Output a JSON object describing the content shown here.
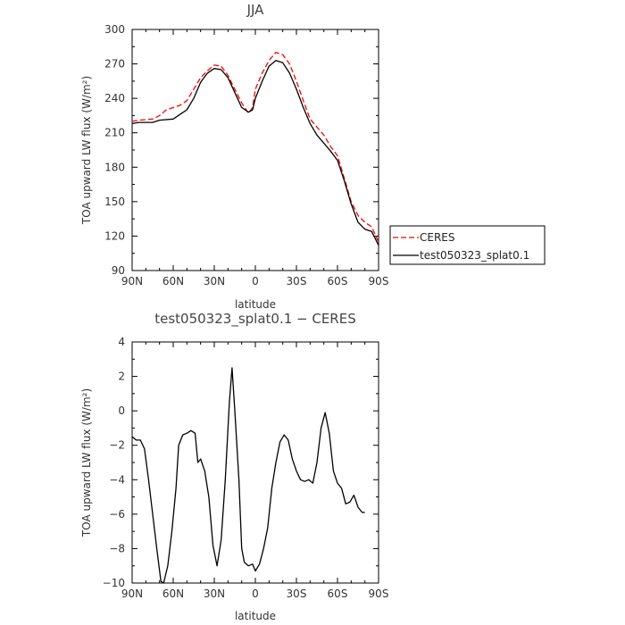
{
  "chart_data": [
    {
      "type": "line",
      "title": "JJA",
      "xlabel": "latitude",
      "ylabel": "TOA upward LW flux (W/m²)",
      "x_ticks": [
        90,
        60,
        30,
        0,
        -30,
        -60,
        -90
      ],
      "x_tick_labels": [
        "90N",
        "60N",
        "30N",
        "0",
        "30S",
        "60S",
        "90S"
      ],
      "xlim": [
        90,
        -90
      ],
      "ylim": [
        90,
        300
      ],
      "y_ticks": [
        90,
        120,
        150,
        180,
        210,
        240,
        270,
        300
      ],
      "y_tick_labels": [
        "90",
        "120",
        "150",
        "180",
        "210",
        "240",
        "270",
        "300"
      ],
      "legend": {
        "placement": "outside-right"
      },
      "series": [
        {
          "name": "CERES",
          "color": "#ff0000",
          "dash": "dashed",
          "points": [
            [
              90,
              220
            ],
            [
              85,
              221
            ],
            [
              75,
              222
            ],
            [
              70,
              225
            ],
            [
              65,
              230
            ],
            [
              55,
              234
            ],
            [
              50,
              238
            ],
            [
              45,
              248
            ],
            [
              40,
              258
            ],
            [
              35,
              264
            ],
            [
              30,
              269
            ],
            [
              25,
              268
            ],
            [
              20,
              260
            ],
            [
              15,
              248
            ],
            [
              10,
              236
            ],
            [
              5,
              227
            ],
            [
              2,
              232
            ],
            [
              0,
              248
            ],
            [
              -5,
              262
            ],
            [
              -10,
              273
            ],
            [
              -15,
              280
            ],
            [
              -20,
              278
            ],
            [
              -25,
              270
            ],
            [
              -30,
              255
            ],
            [
              -35,
              238
            ],
            [
              -40,
              222
            ],
            [
              -50,
              208
            ],
            [
              -55,
              198
            ],
            [
              -60,
              190
            ],
            [
              -65,
              170
            ],
            [
              -70,
              150
            ],
            [
              -75,
              138
            ],
            [
              -80,
              132
            ],
            [
              -85,
              128
            ],
            [
              -88,
              120
            ],
            [
              -90,
              115
            ]
          ]
        },
        {
          "name": "test050323_splat0.1",
          "color": "#000000",
          "dash": "solid",
          "points": [
            [
              90,
              218
            ],
            [
              85,
              219
            ],
            [
              75,
              219
            ],
            [
              70,
              221
            ],
            [
              60,
              222
            ],
            [
              55,
              226
            ],
            [
              50,
              230
            ],
            [
              45,
              240
            ],
            [
              40,
              254
            ],
            [
              35,
              262
            ],
            [
              30,
              266
            ],
            [
              25,
              265
            ],
            [
              20,
              258
            ],
            [
              15,
              245
            ],
            [
              10,
              232
            ],
            [
              5,
              228
            ],
            [
              2,
              230
            ],
            [
              0,
              240
            ],
            [
              -5,
              255
            ],
            [
              -10,
              268
            ],
            [
              -15,
              273
            ],
            [
              -20,
              271
            ],
            [
              -25,
              262
            ],
            [
              -30,
              248
            ],
            [
              -35,
              232
            ],
            [
              -40,
              218
            ],
            [
              -45,
              208
            ],
            [
              -50,
              201
            ],
            [
              -55,
              194
            ],
            [
              -60,
              186
            ],
            [
              -65,
              168
            ],
            [
              -70,
              148
            ],
            [
              -75,
              132
            ],
            [
              -80,
              126
            ],
            [
              -85,
              124
            ],
            [
              -90,
              112
            ]
          ]
        }
      ]
    },
    {
      "type": "line",
      "title": "test050323_splat0.1 − CERES",
      "xlabel": "latitude",
      "ylabel": "TOA upward LW flux (W/m²)",
      "x_ticks": [
        90,
        60,
        30,
        0,
        -30,
        -60,
        -90
      ],
      "x_tick_labels": [
        "90N",
        "60N",
        "30N",
        "0",
        "30S",
        "60S",
        "90S"
      ],
      "xlim": [
        90,
        -90
      ],
      "ylim": [
        -10,
        4
      ],
      "y_ticks": [
        -10,
        -8,
        -6,
        -4,
        -2,
        0,
        2,
        4
      ],
      "y_tick_labels": [
        "−10",
        "−8",
        "−6",
        "−4",
        "−2",
        "0",
        "2",
        "4"
      ],
      "series": [
        {
          "name": "",
          "color": "#000000",
          "dash": "solid",
          "points": [
            [
              90,
              -1.5
            ],
            [
              87,
              -1.7
            ],
            [
              84,
              -1.7
            ],
            [
              81,
              -2.2
            ],
            [
              78,
              -4.0
            ],
            [
              75,
              -6.0
            ],
            [
              72,
              -8.0
            ],
            [
              69,
              -9.9
            ],
            [
              67,
              -10.0
            ],
            [
              64,
              -9.0
            ],
            [
              61,
              -7.0
            ],
            [
              58,
              -4.5
            ],
            [
              56,
              -2.0
            ],
            [
              53,
              -1.4
            ],
            [
              50,
              -1.3
            ],
            [
              47,
              -1.15
            ],
            [
              44,
              -1.3
            ],
            [
              42,
              -3.0
            ],
            [
              40,
              -2.8
            ],
            [
              37,
              -3.5
            ],
            [
              34,
              -5.0
            ],
            [
              31,
              -7.8
            ],
            [
              28,
              -9.0
            ],
            [
              25,
              -7.5
            ],
            [
              22,
              -4.0
            ],
            [
              19,
              0.5
            ],
            [
              17,
              2.5
            ],
            [
              15,
              0.0
            ],
            [
              12,
              -4.0
            ],
            [
              10,
              -8.0
            ],
            [
              8,
              -8.8
            ],
            [
              5,
              -9.0
            ],
            [
              2,
              -8.9
            ],
            [
              0,
              -9.3
            ],
            [
              -3,
              -8.9
            ],
            [
              -6,
              -8.0
            ],
            [
              -9,
              -6.8
            ],
            [
              -12,
              -4.5
            ],
            [
              -15,
              -3.0
            ],
            [
              -18,
              -1.8
            ],
            [
              -21,
              -1.4
            ],
            [
              -24,
              -1.7
            ],
            [
              -27,
              -2.8
            ],
            [
              -30,
              -3.5
            ],
            [
              -33,
              -4.0
            ],
            [
              -36,
              -4.1
            ],
            [
              -39,
              -4.0
            ],
            [
              -42,
              -4.2
            ],
            [
              -45,
              -3.0
            ],
            [
              -48,
              -1.0
            ],
            [
              -51,
              -0.1
            ],
            [
              -54,
              -1.3
            ],
            [
              -57,
              -3.5
            ],
            [
              -60,
              -4.2
            ],
            [
              -63,
              -4.5
            ],
            [
              -66,
              -5.4
            ],
            [
              -69,
              -5.3
            ],
            [
              -72,
              -4.9
            ],
            [
              -75,
              -5.6
            ],
            [
              -78,
              -5.9
            ],
            [
              -80,
              -5.9
            ]
          ]
        }
      ]
    }
  ]
}
